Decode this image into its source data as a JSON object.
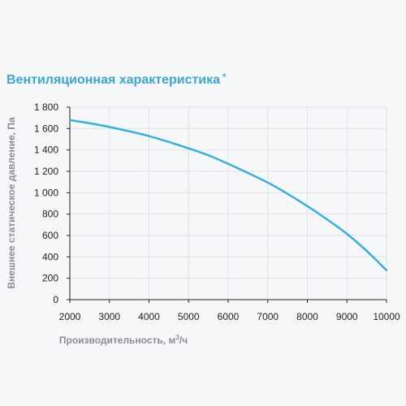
{
  "chart_data": {
    "type": "line",
    "title": "Вентиляционная характеристика",
    "title_mark": "*",
    "xlabel": "Производительность, м",
    "xlabel_sup": "3",
    "xlabel_suffix": "/ч",
    "ylabel": "Внешнее статическое давление, Па",
    "xlim": [
      2000,
      10000
    ],
    "ylim": [
      0,
      1800
    ],
    "x_ticks": [
      2000,
      3000,
      4000,
      5000,
      6000,
      7000,
      8000,
      9000,
      10000
    ],
    "x_tick_labels": [
      "2000",
      "3000",
      "4000",
      "5000",
      "6000",
      "7000",
      "8000",
      "9000",
      "10000"
    ],
    "y_ticks": [
      0,
      200,
      400,
      600,
      800,
      1000,
      1200,
      1400,
      1600,
      1800
    ],
    "y_tick_labels": [
      "0",
      "200",
      "400",
      "600",
      "800",
      "1 000",
      "1 200",
      "1 400",
      "1 600",
      "1 800"
    ],
    "grid": true,
    "series": [
      {
        "color": "#38b0dc",
        "x": [
          2000,
          2500,
          3000,
          3500,
          4000,
          4500,
          5000,
          5500,
          6000,
          6500,
          7000,
          7500,
          8000,
          8500,
          9000,
          9500,
          10000
        ],
        "y": [
          1680,
          1650,
          1615,
          1575,
          1530,
          1475,
          1415,
          1350,
          1270,
          1185,
          1095,
          990,
          875,
          750,
          615,
          455,
          275
        ]
      }
    ]
  }
}
